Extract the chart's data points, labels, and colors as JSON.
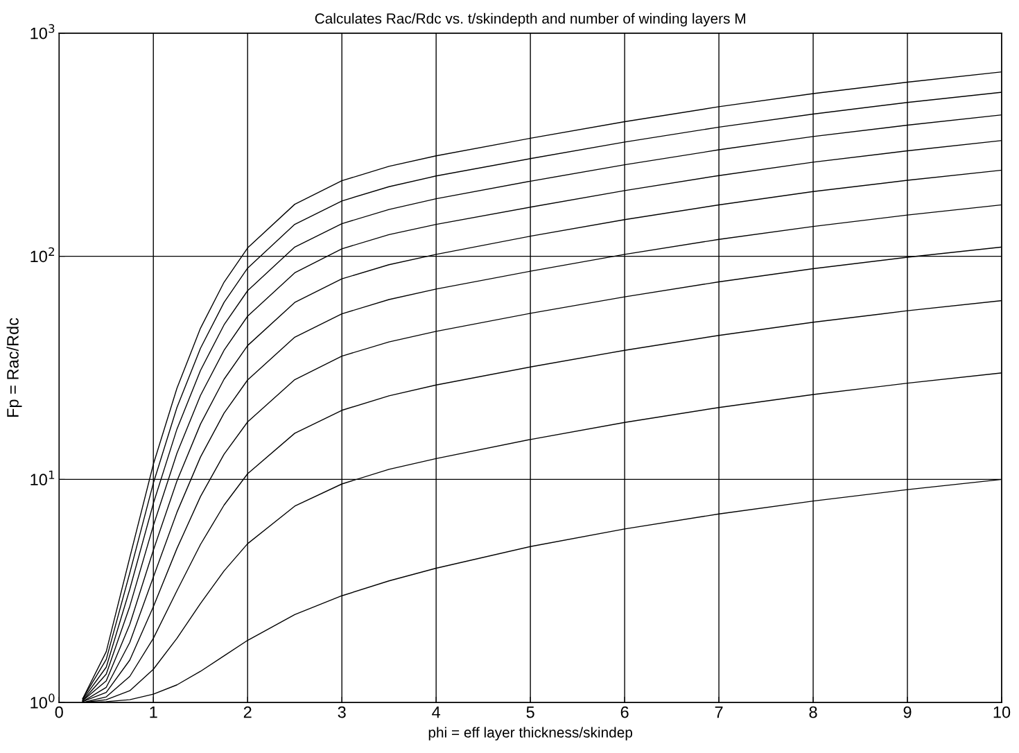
{
  "chart_data": {
    "type": "line",
    "title": "Calculates Rac/Rdc vs. t/skindepth and number of winding layers M",
    "xlabel": "phi = eff layer thickness/skindep",
    "ylabel": "Fp = Rac/Rdc",
    "x": [
      0.25,
      0.5,
      0.75,
      1,
      1.25,
      1.5,
      1.75,
      2,
      2.5,
      3,
      3.5,
      4,
      5,
      6,
      7,
      8,
      9,
      10
    ],
    "series": [
      {
        "color": "#000000",
        "values": [
          1.0,
          1.01,
          1.03,
          1.09,
          1.2,
          1.38,
          1.62,
          1.9,
          2.48,
          3.01,
          3.51,
          4.0,
          5.0,
          6.0,
          7.0,
          8.0,
          9.0,
          10.0
        ]
      },
      {
        "color": "#000000",
        "values": [
          1.0,
          1.03,
          1.13,
          1.41,
          1.94,
          2.78,
          3.89,
          5.15,
          7.59,
          9.54,
          11.1,
          12.4,
          15.1,
          18.0,
          21.0,
          24.0,
          27.0,
          30.0
        ]
      },
      {
        "color": "#000000",
        "values": [
          1.0,
          1.06,
          1.31,
          1.94,
          3.17,
          5.11,
          7.67,
          10.6,
          16.1,
          20.4,
          23.7,
          26.5,
          31.9,
          37.9,
          44.2,
          50.6,
          57.0,
          63.3
        ]
      },
      {
        "color": "#000000",
        "values": [
          1.01,
          1.11,
          1.55,
          2.69,
          4.9,
          8.38,
          12.97,
          18.1,
          28.0,
          35.7,
          41.3,
          46.1,
          55.5,
          65.8,
          76.8,
          88.0,
          99.0,
          110
        ]
      },
      {
        "color": "#000000",
        "values": [
          1.01,
          1.17,
          1.86,
          3.65,
          7.12,
          12.6,
          19.8,
          27.9,
          43.4,
          55.2,
          64.0,
          71.3,
          85.7,
          102,
          119,
          136,
          153,
          170
        ]
      },
      {
        "color": "#000000",
        "values": [
          1.02,
          1.25,
          2.24,
          4.82,
          9.84,
          17.7,
          28.1,
          39.8,
          62.1,
          79.2,
          91.7,
          102,
          123,
          146,
          170,
          195,
          219,
          243
        ]
      },
      {
        "color": "#000000",
        "values": [
          1.02,
          1.34,
          2.7,
          6.21,
          13.1,
          23.8,
          37.9,
          53.9,
          84.3,
          108,
          125,
          139,
          166,
          197,
          230,
          264,
          297,
          330
        ]
      },
      {
        "color": "#000000",
        "values": [
          1.03,
          1.44,
          3.22,
          7.81,
          16.8,
          30.8,
          49.3,
          70.1,
          110,
          140,
          162,
          181,
          217,
          257,
          300,
          344,
          387,
          430
        ]
      },
      {
        "color": "#000000",
        "values": [
          1.04,
          1.56,
          3.81,
          9.63,
          21.0,
          38.7,
          62.1,
          88.5,
          139,
          177,
          205,
          229,
          274,
          325,
          379,
          434,
          489,
          543
        ]
      },
      {
        "color": "#000000",
        "values": [
          1.04,
          1.69,
          4.47,
          11.7,
          25.6,
          47.6,
          76.5,
          109,
          171,
          218,
          253,
          282,
          338,
          401,
          468,
          536,
          603,
          670
        ]
      }
    ],
    "log": "y",
    "xlim": [
      0,
      10
    ],
    "ylim": [
      1,
      1000
    ],
    "xticks": [
      0,
      1,
      2,
      3,
      4,
      5,
      6,
      7,
      8,
      9,
      10
    ],
    "yticks": [
      {
        "value": 1,
        "label": "10$^{0}$"
      },
      {
        "value": 10,
        "label": "10$^{1}$"
      },
      {
        "value": 100,
        "label": "10$^{2}$"
      },
      {
        "value": 1000,
        "label": "10$^{3}$"
      }
    ],
    "grid": true,
    "marker": "none",
    "line_style": "solid"
  }
}
